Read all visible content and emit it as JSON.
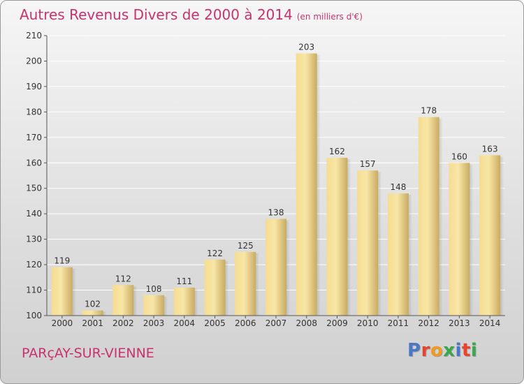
{
  "title": "Autres Revenus Divers de 2000 à 2014",
  "unit": "(en milliers d'€)",
  "commune": "PARçAY-SUR-VIENNE",
  "logo": {
    "text": "Proxiti",
    "colors": [
      "#4a78c8",
      "#e8452e",
      "#f29a1f",
      "#3aa84a",
      "#4a78c8",
      "#e8452e",
      "#3aa84a"
    ]
  },
  "colors": {
    "title": "#c8326e",
    "bar_light": "#f8e4a0",
    "bar_dark": "#c8ab60",
    "grid": "#ffffff",
    "axis_text": "#333333"
  },
  "chart_data": {
    "type": "bar",
    "title": "Autres Revenus Divers de 2000 à 2014",
    "xlabel": "",
    "ylabel": "",
    "categories": [
      "2000",
      "2001",
      "2002",
      "2003",
      "2004",
      "2005",
      "2006",
      "2007",
      "2008",
      "2009",
      "2010",
      "2011",
      "2012",
      "2013",
      "2014"
    ],
    "values": [
      119,
      102,
      112,
      108,
      111,
      122,
      125,
      138,
      203,
      162,
      157,
      148,
      178,
      160,
      163
    ],
    "ylim": [
      100,
      210
    ],
    "yticks": [
      100,
      110,
      120,
      130,
      140,
      150,
      160,
      170,
      180,
      190,
      200,
      210
    ],
    "grid": true,
    "data_labels": true
  }
}
